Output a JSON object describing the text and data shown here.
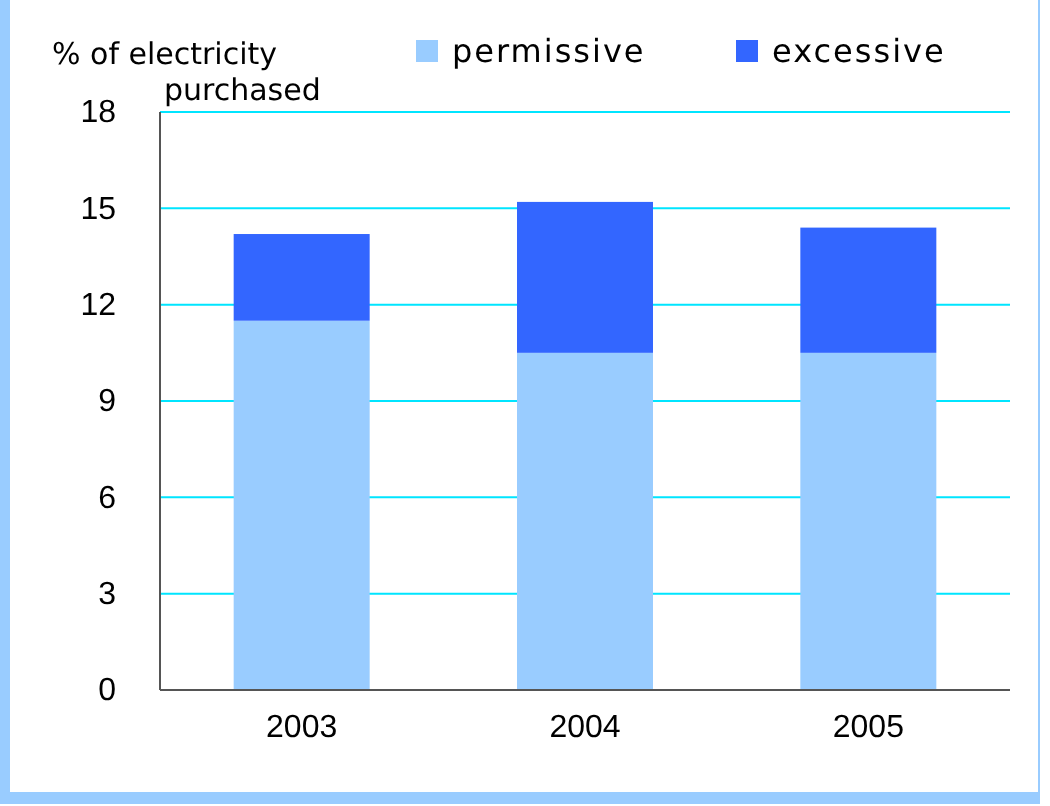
{
  "chart_data": {
    "type": "bar",
    "ylabel": "% of electricity purchased",
    "categories": [
      "2003",
      "2004",
      "2005"
    ],
    "stacked": true,
    "series": [
      {
        "name": "permissive",
        "color": "#99ccff",
        "values": [
          11.5,
          10.5,
          10.5
        ]
      },
      {
        "name": "excessive",
        "color": "#3366ff",
        "values": [
          2.7,
          4.7,
          3.9
        ]
      }
    ],
    "ylim": [
      0,
      18
    ],
    "yticks": [
      0,
      3,
      6,
      9,
      12,
      15,
      18
    ],
    "grid": "y",
    "legend": "top right"
  }
}
